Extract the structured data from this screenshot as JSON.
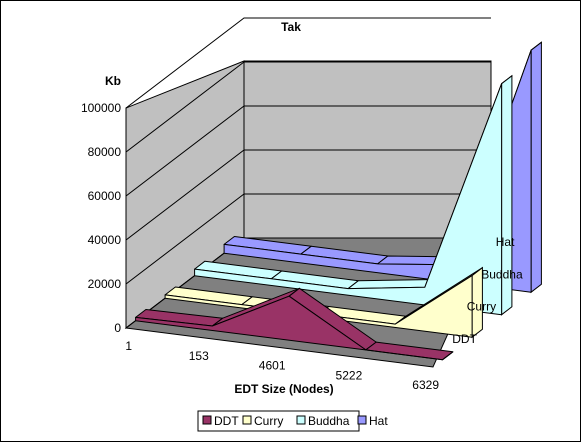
{
  "chart_data": {
    "type": "area",
    "subtype": "3d-area",
    "title": "Tak",
    "xlabel": "EDT Size (Nodes)",
    "ylabel": "Kb",
    "categories": [
      "1",
      "153",
      "4601",
      "5222",
      "6329"
    ],
    "yticks": [
      "0",
      "20000",
      "40000",
      "60000",
      "80000",
      "100000"
    ],
    "ylim": [
      0,
      100000
    ],
    "series": [
      {
        "name": "DDT",
        "color": "#993366",
        "values": [
          1500,
          2000,
          20000,
          0,
          0
        ]
      },
      {
        "name": "Curry",
        "color": "#FFFFCC",
        "values": [
          1500,
          1500,
          1500,
          1500,
          28000
        ]
      },
      {
        "name": "Buddha",
        "color": "#CCFFFF",
        "values": [
          3000,
          3000,
          3000,
          8000,
          105000
        ]
      },
      {
        "name": "Hat",
        "color": "#9999FF",
        "values": [
          4000,
          4000,
          4000,
          8000,
          110000
        ]
      }
    ],
    "series_axis_order": [
      "DDT",
      "Curry",
      "Buddha",
      "Hat"
    ],
    "grid": true,
    "legend_position": "bottom"
  }
}
